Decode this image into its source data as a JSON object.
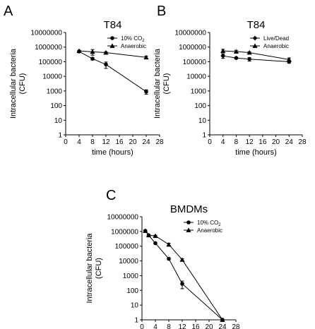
{
  "chart_data": [
    {
      "panel": "A",
      "type": "line",
      "title": "T84",
      "xlabel": "time (hours)",
      "ylabel": "Intracellular bacteria\n(CFU)",
      "xlim": [
        0,
        28
      ],
      "ylim": [
        1,
        10000000
      ],
      "yscale": "log",
      "xticks": [
        "0",
        "4",
        "8",
        "12",
        "16",
        "20",
        "24",
        "28"
      ],
      "yticks": [
        "1",
        "10",
        "100",
        "1000",
        "10000",
        "100000",
        "1000000",
        "10000000"
      ],
      "legend_position": "top-right",
      "series": [
        {
          "name": "10% CO2",
          "marker": "circle",
          "x": [
            4,
            8,
            12,
            24
          ],
          "y": [
            500000,
            160000,
            65000,
            900
          ],
          "err": [
            80000,
            30000,
            30000,
            300
          ]
        },
        {
          "name": "Anaerobic",
          "marker": "triangle",
          "x": [
            4,
            8,
            12,
            24
          ],
          "y": [
            550000,
            480000,
            420000,
            200000
          ],
          "err": [
            60000,
            200000,
            60000,
            40000
          ]
        }
      ]
    },
    {
      "panel": "B",
      "type": "line",
      "title": "T84",
      "xlabel": "time (hours)",
      "ylabel": "Intracellular bacteria\n(CFU)",
      "xlim": [
        0,
        28
      ],
      "ylim": [
        1,
        10000000
      ],
      "yscale": "log",
      "xticks": [
        "0",
        "4",
        "8",
        "12",
        "16",
        "20",
        "24",
        "28"
      ],
      "yticks": [
        "1",
        "10",
        "100",
        "1000",
        "10000",
        "100000",
        "1000000",
        "10000000"
      ],
      "legend_position": "top-right",
      "series": [
        {
          "name": "Live/Dead",
          "marker": "diamond",
          "x": [
            4,
            8,
            12,
            24
          ],
          "y": [
            250000,
            180000,
            150000,
            100000
          ],
          "err": [
            80000,
            30000,
            40000,
            20000
          ]
        },
        {
          "name": "Anaerobic",
          "marker": "triangle",
          "x": [
            4,
            8,
            12,
            24
          ],
          "y": [
            550000,
            500000,
            420000,
            140000
          ],
          "err": [
            150000,
            100000,
            60000,
            40000
          ]
        }
      ]
    },
    {
      "panel": "C",
      "type": "line",
      "title": "BMDMs",
      "xlabel": "time (hours)",
      "ylabel": "Intracellular bacteria\n(CFU)",
      "xlim": [
        0,
        28
      ],
      "ylim": [
        1,
        10000000
      ],
      "yscale": "log",
      "xticks": [
        "0",
        "4",
        "8",
        "12",
        "16",
        "20",
        "24",
        "28"
      ],
      "yticks": [
        "1",
        "10",
        "100",
        "1000",
        "10000",
        "100000",
        "1000000",
        "10000000"
      ],
      "legend_position": "top-right",
      "series": [
        {
          "name": "10% CO2",
          "marker": "circle",
          "x": [
            1,
            2,
            4,
            8,
            12,
            24
          ],
          "y": [
            1100000,
            550000,
            160000,
            14000,
            280,
            1
          ],
          "err": [
            100000,
            50000,
            20000,
            2000,
            150,
            0
          ]
        },
        {
          "name": "Anaerobic",
          "marker": "triangle",
          "x": [
            1,
            2,
            4,
            8,
            12,
            24
          ],
          "y": [
            1100000,
            550000,
            500000,
            130000,
            12000,
            1
          ],
          "err": [
            100000,
            50000,
            50000,
            30000,
            2000,
            0
          ]
        }
      ]
    }
  ]
}
